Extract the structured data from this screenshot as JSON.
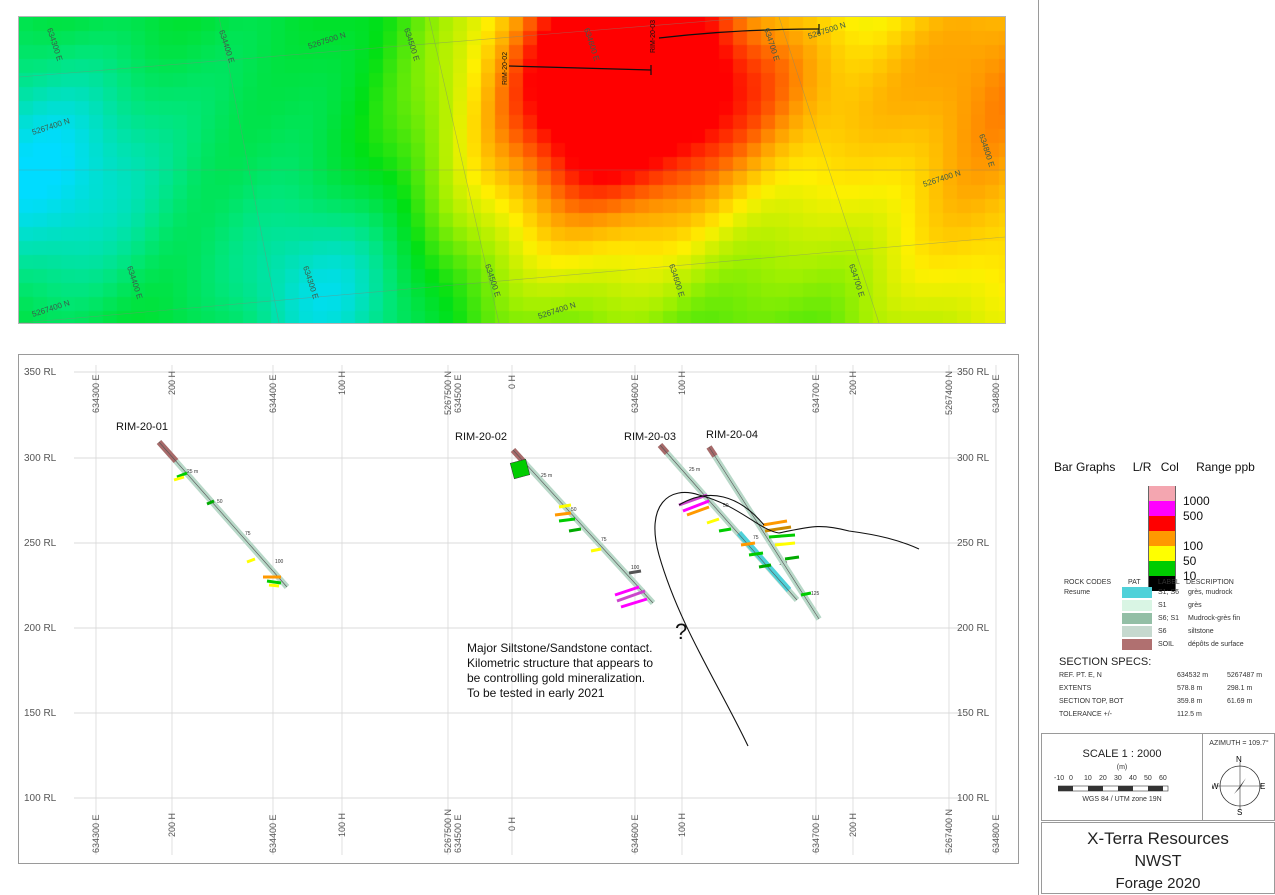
{
  "map": {
    "labels": [
      {
        "text": "5267500 N"
      },
      {
        "text": "5267500 N"
      },
      {
        "text": "634400 E"
      },
      {
        "text": "634500 E"
      },
      {
        "text": "634600 E"
      },
      {
        "text": "634700 E"
      },
      {
        "text": "5267400 N"
      },
      {
        "text": "634800 E"
      },
      {
        "text": "5267400 N"
      },
      {
        "text": "634400 E"
      },
      {
        "text": "634500 E"
      },
      {
        "text": "634600 E"
      },
      {
        "text": "634700 E"
      },
      {
        "text": "5267400 N"
      },
      {
        "text": "5267400 N"
      },
      {
        "text": "634300 E"
      },
      {
        "text": "634300 E"
      }
    ],
    "hole_labels": [
      "RIM-20-02",
      "RIM-20-03"
    ]
  },
  "section": {
    "rl_labels": [
      "350 RL",
      "300 RL",
      "250 RL",
      "200 RL",
      "150 RL",
      "100 RL"
    ],
    "top_axis": [
      "634300 E",
      "200 H",
      "634400 E",
      "100 H",
      "5267500 N",
      "634500 E",
      "0 H",
      "634600 E",
      "100 H",
      "634700 E",
      "200 H",
      "5267400 N",
      "634800 E"
    ],
    "bottom_axis": [
      "634300 E",
      "200 H",
      "634400 E",
      "100 H",
      "5267500 N",
      "634500 E",
      "0 H",
      "634600 E",
      "100 H",
      "634700 E",
      "200 H",
      "5267400 N",
      "634800 E"
    ],
    "holes": [
      "RIM-20-01",
      "RIM-20-02",
      "RIM-20-03",
      "RIM-20-04"
    ],
    "depth_marks": [
      "25 m",
      "50",
      "75",
      "100",
      "25 m",
      "50",
      "75",
      "100",
      "25 m",
      "50",
      "75",
      "100",
      "125"
    ],
    "question_mark": "?",
    "note": [
      "Major Siltstone/Sandstone contact.",
      "Kilometric structure that appears to",
      "be controlling gold mineralization.",
      "To be tested in early 2021"
    ]
  },
  "legend": {
    "header": {
      "bar_graphs": "Bar Graphs",
      "lr": "L/R",
      "col": "Col",
      "range": "Range ppb"
    },
    "ranges": [
      {
        "label": "1000",
        "color": "#f4a6b0"
      },
      {
        "label": "500",
        "color": "#ff00ff"
      },
      {
        "label": "",
        "color": "#ff0000"
      },
      {
        "label": "100",
        "color": "#ff9900"
      },
      {
        "label": "50",
        "color": "#ffff00"
      },
      {
        "label": "10",
        "color": "#00cc00"
      },
      {
        "label": "",
        "color": "#000000"
      }
    ],
    "rock_header": {
      "codes": "ROCK CODES",
      "pat": "PAT",
      "label": "LABEL",
      "desc": "DESCRIPTION",
      "resume": "Resume"
    },
    "rocks": [
      {
        "label": "S1; S6",
        "desc": "grès, mudrock",
        "color": "#4fd1d9"
      },
      {
        "label": "S1",
        "desc": "grès",
        "color": "#d9f5e4"
      },
      {
        "label": "S6; S1",
        "desc": "Mudrock-grès fin",
        "color": "#93bfa6"
      },
      {
        "label": "S6",
        "desc": "siltstone",
        "color": "#c6d9cf"
      },
      {
        "label": "SOIL",
        "desc": "dépôts de surface",
        "color": "#b07070"
      }
    ]
  },
  "specs": {
    "title": "SECTION SPECS:",
    "rows": [
      {
        "k": "REF. PT. E, N",
        "v1": "634532 m",
        "v2": "5267487 m"
      },
      {
        "k": "EXTENTS",
        "v1": "578.8 m",
        "v2": "298.1 m"
      },
      {
        "k": "SECTION TOP, BOT",
        "v1": "359.8 m",
        "v2": "61.69 m"
      },
      {
        "k": "TOLERANCE +/-",
        "v1": "112.5 m",
        "v2": ""
      }
    ]
  },
  "scale": {
    "title": "SCALE  1 : 2000",
    "unit": "(m)",
    "ticks": [
      "-10",
      "0",
      "10",
      "20",
      "30",
      "40",
      "50",
      "60"
    ],
    "datum": "WGS 84 / UTM zone 19N",
    "azimuth": "AZIMUTH = 109.7°",
    "n": "N",
    "s": "S",
    "e": "E",
    "w": "W"
  },
  "title_block": {
    "company": "X-Terra Resources",
    "project": "NWST",
    "program": "Forage 2020"
  }
}
